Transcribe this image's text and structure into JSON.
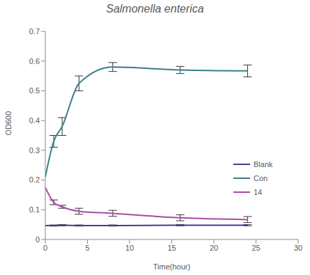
{
  "chart_data": {
    "type": "line",
    "title": "Salmonella enterica",
    "x_label": "Time(hour)",
    "y_label": "OD600",
    "x": [
      0,
      1,
      2,
      4,
      8,
      16,
      24
    ],
    "xlim": [
      0,
      30
    ],
    "xticks": [
      0,
      5,
      10,
      15,
      20,
      25,
      30
    ],
    "ylim": [
      0,
      0.7
    ],
    "yticks": [
      0,
      0.1,
      0.2,
      0.3,
      0.4,
      0.5,
      0.6,
      0.7
    ],
    "grid": false,
    "legend": "right",
    "series": [
      {
        "name": "Blank",
        "color": "#3b3f8f",
        "values": [
          0.047,
          0.047,
          0.048,
          0.047,
          0.047,
          0.048,
          0.048
        ],
        "errors": [
          null,
          0.002,
          0.002,
          0.002,
          0.002,
          0.002,
          0.002
        ]
      },
      {
        "name": "Con",
        "color": "#3a7d8a",
        "values": [
          0.21,
          0.33,
          0.38,
          0.525,
          0.58,
          0.57,
          0.567
        ],
        "errors": [
          null,
          0.02,
          0.03,
          0.025,
          0.015,
          0.012,
          0.02
        ]
      },
      {
        "name": "14",
        "color": "#a74aa6",
        "values": [
          0.175,
          0.125,
          0.11,
          0.095,
          0.088,
          0.073,
          0.067
        ],
        "errors": [
          null,
          0.008,
          0.005,
          0.01,
          0.01,
          0.01,
          0.01
        ]
      }
    ]
  }
}
